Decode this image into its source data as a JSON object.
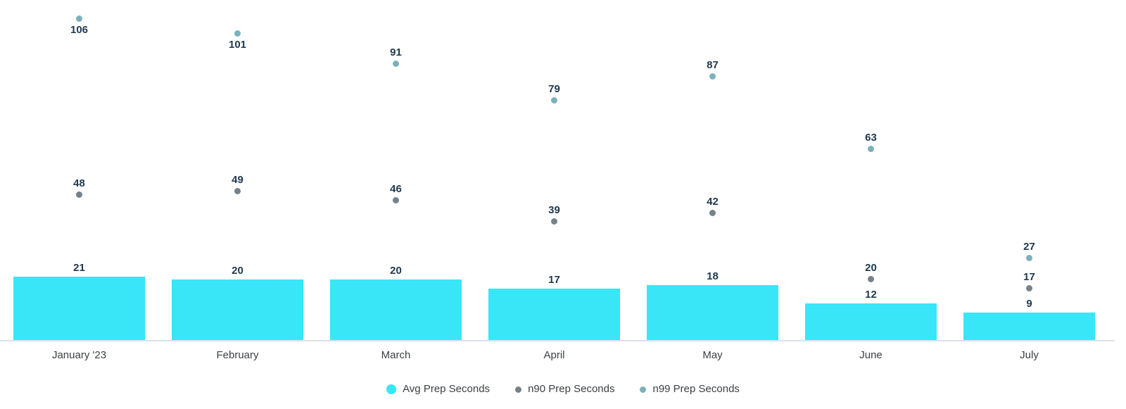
{
  "chart_data": {
    "type": "bar",
    "title": "",
    "xlabel": "",
    "ylabel": "",
    "categories": [
      "January '23",
      "February",
      "March",
      "April",
      "May",
      "June",
      "July"
    ],
    "series": [
      {
        "name": "Avg Prep Seconds",
        "type": "bar",
        "color": "#38E6F8",
        "values": [
          21,
          20,
          20,
          17,
          18,
          12,
          9
        ]
      },
      {
        "name": "n90 Prep Seconds",
        "type": "scatter",
        "color": "#75828C",
        "values": [
          48,
          49,
          46,
          39,
          42,
          20,
          17
        ]
      },
      {
        "name": "n99 Prep Seconds",
        "type": "scatter",
        "color": "#7BB1BB",
        "values": [
          106,
          101,
          91,
          79,
          87,
          63,
          27
        ]
      }
    ],
    "ylim": [
      0,
      112
    ],
    "grid": false,
    "y_axis_visible": false,
    "legend_position": "bottom",
    "data_labels_visible": true,
    "colors": {
      "data_label": "#1F394E",
      "category_label": "#3C4043",
      "legend_label": "#3C4043",
      "axis_line": "#DCE0E9",
      "background": "#FFFFFF"
    }
  }
}
